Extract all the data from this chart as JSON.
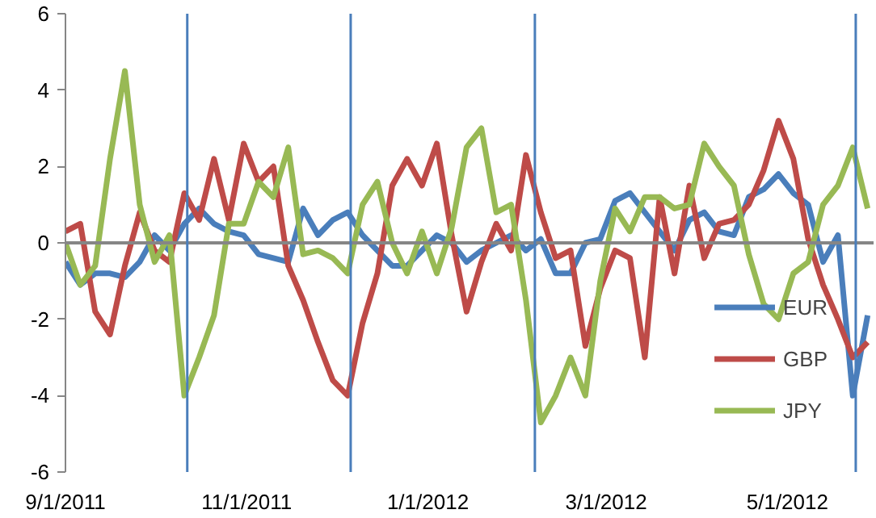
{
  "chart_data": {
    "type": "line",
    "x": [
      "2011-09-01",
      "2011-09-06",
      "2011-09-11",
      "2011-09-16",
      "2011-09-21",
      "2011-09-26",
      "2011-10-01",
      "2011-10-06",
      "2011-10-11",
      "2011-10-16",
      "2011-10-21",
      "2011-10-26",
      "2011-10-31",
      "2011-11-05",
      "2011-11-10",
      "2011-11-15",
      "2011-11-20",
      "2011-11-25",
      "2011-11-30",
      "2011-12-05",
      "2011-12-10",
      "2011-12-15",
      "2011-12-20",
      "2011-12-25",
      "2011-12-30",
      "2012-01-04",
      "2012-01-09",
      "2012-01-14",
      "2012-01-19",
      "2012-01-24",
      "2012-01-29",
      "2012-02-03",
      "2012-02-08",
      "2012-02-13",
      "2012-02-18",
      "2012-02-23",
      "2012-02-28",
      "2012-03-04",
      "2012-03-09",
      "2012-03-14",
      "2012-03-19",
      "2012-03-24",
      "2012-03-29",
      "2012-04-03",
      "2012-04-08",
      "2012-04-13",
      "2012-04-18",
      "2012-04-23",
      "2012-04-28",
      "2012-05-03",
      "2012-05-08",
      "2012-05-13",
      "2012-05-18",
      "2012-05-23",
      "2012-05-28"
    ],
    "series": [
      {
        "name": "EUR",
        "color": "#4a7ebb",
        "values": [
          -0.5,
          -1.1,
          -0.8,
          -0.8,
          -0.9,
          -0.5,
          0.2,
          -0.2,
          0.5,
          0.9,
          0.5,
          0.3,
          0.2,
          -0.3,
          -0.4,
          -0.5,
          0.9,
          0.2,
          0.6,
          0.8,
          0.2,
          -0.2,
          -0.6,
          -0.6,
          -0.2,
          0.2,
          0,
          -0.5,
          -0.2,
          0,
          0.2,
          -0.2,
          0.1,
          -0.8,
          -0.8,
          0,
          0.1,
          1.1,
          1.3,
          0.8,
          0.3,
          -0.2,
          0.6,
          0.8,
          0.3,
          0.2,
          1.2,
          1.4,
          1.8,
          1.3,
          1.0,
          -0.5,
          0.2,
          -4.0,
          -1.9
        ]
      },
      {
        "name": "GBP",
        "color": "#be4b48",
        "values": [
          0.3,
          0.5,
          -1.8,
          -2.4,
          -0.6,
          0.8,
          -0.2,
          -0.5,
          1.3,
          0.6,
          2.2,
          0.6,
          2.6,
          1.6,
          2.0,
          -0.6,
          -1.5,
          -2.6,
          -3.6,
          -4.0,
          -2.1,
          -0.8,
          1.5,
          2.2,
          1.5,
          2.6,
          0.2,
          -1.8,
          -0.5,
          0.5,
          -0.2,
          2.3,
          0.8,
          -0.4,
          -0.2,
          -2.7,
          -1.2,
          -0.2,
          -0.4,
          -3.0,
          1.2,
          -0.8,
          1.5,
          -0.4,
          0.5,
          0.6,
          1.0,
          1.9,
          3.2,
          2.2,
          0.1,
          -1.1,
          -2.0,
          -3.0,
          -2.6
        ]
      },
      {
        "name": "JPY",
        "color": "#98b954",
        "values": [
          0,
          -1.1,
          -0.6,
          2.2,
          4.5,
          1.0,
          -0.5,
          0.2,
          -4.0,
          -3.0,
          -1.9,
          0.5,
          0.5,
          1.6,
          1.2,
          2.5,
          -0.3,
          -0.2,
          -0.4,
          -0.8,
          1.0,
          1.6,
          0,
          -0.8,
          0.3,
          -0.8,
          0.4,
          2.5,
          3.0,
          0.8,
          1.0,
          -1.5,
          -4.7,
          -4.0,
          -3.0,
          -4.0,
          -1.0,
          0.9,
          0.3,
          1.2,
          1.2,
          0.9,
          1.0,
          2.6,
          2.0,
          1.5,
          -0.3,
          -1.6,
          -2.0,
          -0.8,
          -0.5,
          1.0,
          1.5,
          2.5,
          0.9
        ]
      }
    ],
    "xlim": [
      "2011-09-01",
      "2012-05-30"
    ],
    "xticks": [
      {
        "value": "2011-09-01",
        "label": "9/1/2011"
      },
      {
        "value": "2011-11-01",
        "label": "11/1/2011"
      },
      {
        "value": "2012-01-01",
        "label": "1/1/2012"
      },
      {
        "value": "2012-03-01",
        "label": "3/1/2012"
      },
      {
        "value": "2012-05-01",
        "label": "5/1/2012"
      }
    ],
    "ylim": [
      -6,
      6
    ],
    "yticks": [
      -6,
      -4,
      -2,
      0,
      2,
      4,
      6
    ],
    "ref_lines": [
      {
        "axis": "y",
        "value": 0,
        "color": "#868686"
      },
      {
        "axis": "x",
        "value": "2011-10-12",
        "color": "#4a7ebb"
      },
      {
        "axis": "x",
        "value": "2011-12-06",
        "color": "#4a7ebb"
      },
      {
        "axis": "x",
        "value": "2012-02-06",
        "color": "#4a7ebb"
      },
      {
        "axis": "x",
        "value": "2012-05-24",
        "color": "#4a7ebb"
      }
    ],
    "grid": false,
    "legend": "bottom right",
    "marker": "none",
    "line_style": "solid"
  }
}
